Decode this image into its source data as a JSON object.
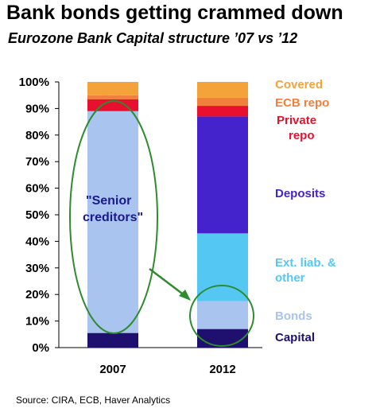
{
  "title": "Bank bonds getting crammed down",
  "subtitle": "Eurozone Bank Capital structure ’07 vs ’12",
  "source": "Source: CIRA, ECB, Haver Analytics",
  "chart_data": {
    "type": "bar",
    "stacked": true,
    "categories": [
      "2007",
      "2012"
    ],
    "ylim": [
      0,
      100
    ],
    "yticks": [
      "0%",
      "10%",
      "20%",
      "30%",
      "40%",
      "50%",
      "60%",
      "70%",
      "80%",
      "90%",
      "100%"
    ],
    "series": [
      {
        "name": "Capital",
        "values": [
          5.5,
          7
        ],
        "color": "#1f0f6e",
        "legend_lines": [
          "Capital"
        ]
      },
      {
        "name": "Bonds",
        "values": [
          83.5,
          10.5
        ],
        "color": "#a9c4ef",
        "legend_lines": [
          "Bonds"
        ]
      },
      {
        "name": "Ext. liab. & other",
        "values": [
          0,
          25.5
        ],
        "color": "#54c8f2",
        "legend_lines": [
          "Ext. liab. &",
          "other"
        ]
      },
      {
        "name": "Deposits",
        "values": [
          0,
          44
        ],
        "color": "#4422cc",
        "legend_lines": [
          "Deposits"
        ]
      },
      {
        "name": "Private repo",
        "values": [
          4.5,
          4
        ],
        "color": "#e8102e",
        "legend_lines": [
          "Private",
          "repo"
        ]
      },
      {
        "name": "ECB repo",
        "values": [
          1.5,
          3
        ],
        "color": "#f0803c",
        "legend_lines": [
          "ECB repo"
        ]
      },
      {
        "name": "Covered",
        "values": [
          5,
          6
        ],
        "color": "#f4a33a",
        "legend_lines": [
          "Covered"
        ]
      }
    ],
    "annotation": {
      "text_lines": [
        "\"Senior",
        "creditors\""
      ],
      "color": "#1a1a8a"
    },
    "highlight_color": "#2e8b2e",
    "grid": false
  }
}
